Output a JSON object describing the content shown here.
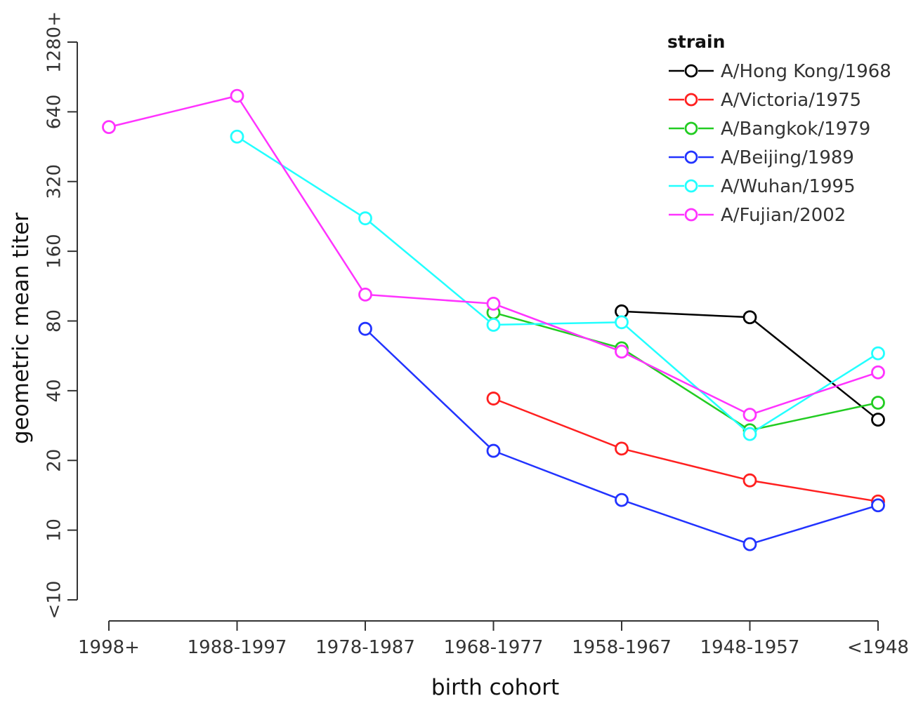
{
  "chart_data": {
    "type": "line",
    "xlabel": "birth cohort",
    "ylabel": "geometric mean titer",
    "y_scale": "log2",
    "categories": [
      "1998+",
      "1988-1997",
      "1978-1987",
      "1968-1977",
      "1958-1967",
      "1948-1957",
      "<1948"
    ],
    "y_ticks": [
      "<10",
      "10",
      "20",
      "40",
      "80",
      "160",
      "320",
      "640",
      "1280+"
    ],
    "ylim": [
      5,
      1280
    ],
    "grid": false,
    "legend": {
      "title": "strain",
      "position": "top-right"
    },
    "series": [
      {
        "name": "A/Hong Kong/1968",
        "color": "#000000",
        "values": [
          null,
          null,
          null,
          null,
          88,
          83,
          30
        ]
      },
      {
        "name": "A/Victoria/1975",
        "color": "#ff2020",
        "values": [
          null,
          null,
          null,
          37,
          22.5,
          16.4,
          13.3
        ]
      },
      {
        "name": "A/Bangkok/1979",
        "color": "#22cc22",
        "values": [
          null,
          null,
          null,
          87,
          61,
          27,
          35.5
        ]
      },
      {
        "name": "A/Beijing/1989",
        "color": "#2233ff",
        "values": [
          null,
          null,
          74,
          22,
          13.5,
          8.7,
          12.8
        ]
      },
      {
        "name": "A/Wuhan/1995",
        "color": "#22ffff",
        "values": [
          null,
          500,
          222,
          77,
          79,
          26,
          58
        ]
      },
      {
        "name": "A/Fujian/2002",
        "color": "#ff33ff",
        "values": [
          550,
          750,
          104,
          95,
          59,
          31.5,
          48
        ]
      }
    ]
  }
}
